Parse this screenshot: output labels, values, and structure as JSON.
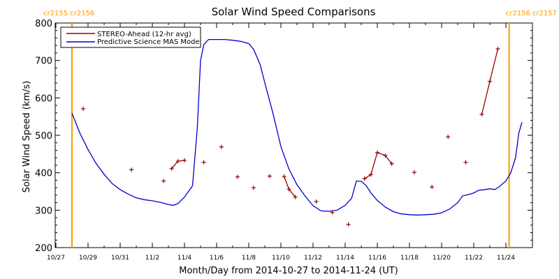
{
  "chart_data": {
    "type": "line",
    "title": "Solar Wind Speed Comparisons",
    "xlabel": "Month/Day from 2014-10-27 to 2014-11-24 (UT)",
    "ylabel": "Solar Wind Speed (km/s)",
    "xlim": [
      0,
      28.5
    ],
    "ylim": [
      200,
      800
    ],
    "yticks": [
      200,
      300,
      400,
      500,
      600,
      700,
      800
    ],
    "xticks": [
      {
        "x": 0,
        "label": "10/27"
      },
      {
        "x": 2,
        "label": "10/29"
      },
      {
        "x": 4,
        "label": "10/31"
      },
      {
        "x": 6,
        "label": "11/2"
      },
      {
        "x": 8,
        "label": "11/4"
      },
      {
        "x": 10,
        "label": "11/6"
      },
      {
        "x": 12,
        "label": "11/8"
      },
      {
        "x": 14,
        "label": "11/10"
      },
      {
        "x": 16,
        "label": "11/12"
      },
      {
        "x": 18,
        "label": "11/14"
      },
      {
        "x": 20,
        "label": "11/16"
      },
      {
        "x": 22,
        "label": "11/18"
      },
      {
        "x": 24,
        "label": "11/20"
      },
      {
        "x": 26,
        "label": "11/22"
      },
      {
        "x": 28,
        "label": "11/24"
      }
    ],
    "rotation_markers": [
      {
        "x": 1.0,
        "label": "cr2155 cr2156",
        "color": "#ff9900"
      },
      {
        "x": 28.2,
        "label": "cr2156 cr2157",
        "color": "#ff9900"
      }
    ],
    "legend": {
      "position": "top-left"
    },
    "series": [
      {
        "name": "STEREO-Ahead (12-hr avg)",
        "color": "#990000",
        "style": "points+segments",
        "points": [
          [
            1.7,
            571
          ],
          [
            4.7,
            408
          ],
          [
            6.7,
            378
          ],
          [
            7.2,
            411
          ],
          [
            7.6,
            431
          ],
          [
            8.0,
            433
          ],
          [
            9.2,
            428
          ],
          [
            10.3,
            469
          ],
          [
            11.3,
            389
          ],
          [
            12.3,
            360
          ],
          [
            13.3,
            391
          ],
          [
            14.2,
            390
          ],
          [
            14.5,
            356
          ],
          [
            14.9,
            335
          ],
          [
            16.2,
            323
          ],
          [
            17.2,
            294
          ],
          [
            18.2,
            262
          ],
          [
            19.2,
            384
          ],
          [
            19.6,
            395
          ],
          [
            20.0,
            454
          ],
          [
            20.5,
            446
          ],
          [
            20.9,
            424
          ],
          [
            22.3,
            401
          ],
          [
            23.4,
            362
          ],
          [
            24.4,
            496
          ],
          [
            25.5,
            428
          ],
          [
            26.5,
            556
          ],
          [
            27.0,
            644
          ],
          [
            27.5,
            731
          ]
        ],
        "segments": [
          [
            [
              7.2,
              411
            ],
            [
              7.6,
              431
            ],
            [
              8.0,
              433
            ]
          ],
          [
            [
              14.2,
              390
            ],
            [
              14.5,
              356
            ],
            [
              14.9,
              335
            ]
          ],
          [
            [
              19.2,
              384
            ],
            [
              19.6,
              395
            ],
            [
              20.0,
              454
            ],
            [
              20.5,
              446
            ],
            [
              20.9,
              424
            ]
          ],
          [
            [
              26.5,
              556
            ],
            [
              27.0,
              644
            ],
            [
              27.5,
              731
            ]
          ]
        ]
      },
      {
        "name": "Predictive Science MAS Model",
        "color": "#0000cc",
        "style": "line",
        "points": [
          [
            1.0,
            559
          ],
          [
            1.5,
            505
          ],
          [
            2.0,
            462
          ],
          [
            2.5,
            425
          ],
          [
            3.0,
            396
          ],
          [
            3.5,
            371
          ],
          [
            4.0,
            355
          ],
          [
            4.5,
            343
          ],
          [
            5.0,
            333
          ],
          [
            5.5,
            328
          ],
          [
            6.0,
            325
          ],
          [
            6.5,
            321
          ],
          [
            7.0,
            315
          ],
          [
            7.3,
            313
          ],
          [
            7.6,
            318
          ],
          [
            8.0,
            335
          ],
          [
            8.5,
            365
          ],
          [
            8.8,
            520
          ],
          [
            9.0,
            700
          ],
          [
            9.2,
            742
          ],
          [
            9.5,
            756
          ],
          [
            10.5,
            756
          ],
          [
            11.0,
            754
          ],
          [
            11.5,
            751
          ],
          [
            12.0,
            745
          ],
          [
            12.3,
            730
          ],
          [
            12.7,
            690
          ],
          [
            13.0,
            640
          ],
          [
            13.5,
            560
          ],
          [
            14.0,
            470
          ],
          [
            14.5,
            410
          ],
          [
            15.0,
            368
          ],
          [
            15.5,
            338
          ],
          [
            16.0,
            312
          ],
          [
            16.5,
            298
          ],
          [
            17.0,
            297
          ],
          [
            17.5,
            300
          ],
          [
            18.0,
            313
          ],
          [
            18.4,
            332
          ],
          [
            18.7,
            378
          ],
          [
            19.0,
            377
          ],
          [
            19.3,
            366
          ],
          [
            19.6,
            346
          ],
          [
            20.0,
            326
          ],
          [
            20.5,
            308
          ],
          [
            21.0,
            296
          ],
          [
            21.5,
            290
          ],
          [
            22.0,
            288
          ],
          [
            22.5,
            287
          ],
          [
            23.0,
            288
          ],
          [
            23.5,
            289
          ],
          [
            24.0,
            293
          ],
          [
            24.5,
            303
          ],
          [
            25.0,
            320
          ],
          [
            25.3,
            338
          ],
          [
            25.7,
            342
          ],
          [
            26.0,
            346
          ],
          [
            26.3,
            353
          ],
          [
            26.7,
            355
          ],
          [
            27.0,
            357
          ],
          [
            27.3,
            355
          ],
          [
            27.6,
            363
          ],
          [
            28.0,
            378
          ],
          [
            28.3,
            400
          ],
          [
            28.6,
            440
          ],
          [
            28.8,
            505
          ],
          [
            29.0,
            535
          ]
        ]
      }
    ]
  }
}
